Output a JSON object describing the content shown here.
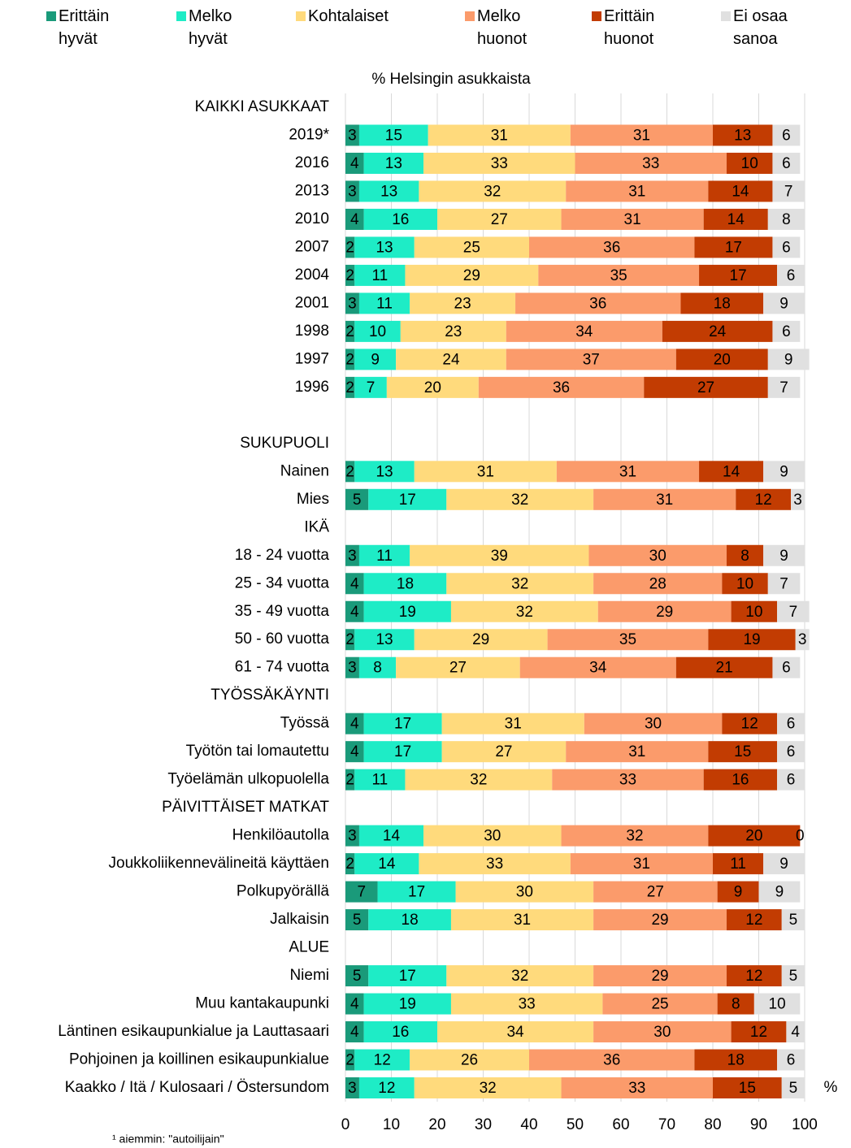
{
  "chart_data": {
    "type": "stacked_barh",
    "subtitle": "% Helsingin asukkaista",
    "x_label": "%",
    "footnote": "¹ aiemmin: \"autoilijain\"",
    "categories": [
      "KAIKKI ASUKKAAT",
      "2019*",
      "2016",
      "2013",
      "2010",
      "2007",
      "2004",
      "2001",
      "1998",
      "1997",
      "1996",
      null,
      "SUKUPUOLI",
      "Nainen",
      "Mies",
      "IKÄ",
      "18 - 24 vuotta",
      "25 - 34 vuotta",
      "35 - 49 vuotta",
      "50 - 60 vuotta",
      "61 - 74 vuotta",
      "TYÖSSÄKÄYNTI",
      "Työssä",
      "Työtön tai lomautettu",
      "Työelämän ulkopuolella",
      "PÄIVITTÄISET MATKAT",
      "Henkilöautolla",
      "Joukkoliikennevälineitä käyttäen",
      "Polkupyörällä",
      "Jalkaisin",
      "ALUE",
      "Niemi",
      "Muu kantakaupunki",
      "Läntinen esikaupunkialue ja Lauttasaari",
      "Pohjoinen ja koillinen esikaupunkialue",
      "Kaakko / Itä / Kulosaari / Östersundom"
    ],
    "series": [
      {
        "name": "Erittäin hyvät",
        "color": "#1a9a7a",
        "values": [
          null,
          3,
          4,
          3,
          4,
          2,
          2,
          3,
          2,
          2,
          2,
          null,
          null,
          2,
          5,
          null,
          3,
          4,
          4,
          2,
          3,
          null,
          4,
          4,
          2,
          null,
          3,
          2,
          7,
          5,
          null,
          5,
          4,
          4,
          2,
          3
        ]
      },
      {
        "name": "Melko hyvät",
        "color": "#1eecc6",
        "values": [
          null,
          15,
          13,
          13,
          16,
          13,
          11,
          11,
          10,
          9,
          7,
          null,
          null,
          13,
          17,
          null,
          11,
          18,
          19,
          13,
          8,
          null,
          17,
          17,
          11,
          null,
          14,
          14,
          17,
          18,
          null,
          17,
          19,
          16,
          12,
          12
        ]
      },
      {
        "name": "Kohtalaiset",
        "color": "#ffda7c",
        "values": [
          null,
          31,
          33,
          32,
          27,
          25,
          29,
          23,
          23,
          24,
          20,
          null,
          null,
          31,
          32,
          null,
          39,
          32,
          32,
          29,
          27,
          null,
          31,
          27,
          32,
          null,
          30,
          33,
          30,
          31,
          null,
          32,
          33,
          34,
          26,
          32
        ]
      },
      {
        "name": "Melko huonot",
        "color": "#fb9b6b",
        "values": [
          null,
          31,
          33,
          31,
          31,
          36,
          35,
          36,
          34,
          37,
          36,
          null,
          null,
          31,
          31,
          null,
          30,
          28,
          29,
          35,
          34,
          null,
          30,
          31,
          33,
          null,
          32,
          31,
          27,
          29,
          null,
          29,
          25,
          30,
          36,
          33
        ]
      },
      {
        "name": "Erittäin huonot",
        "color": "#c23c02",
        "values": [
          null,
          13,
          10,
          14,
          14,
          17,
          17,
          18,
          24,
          20,
          27,
          null,
          null,
          14,
          12,
          null,
          8,
          10,
          10,
          19,
          21,
          null,
          12,
          15,
          16,
          null,
          20,
          11,
          9,
          12,
          null,
          12,
          8,
          12,
          18,
          15
        ]
      },
      {
        "name": "Ei osaa sanoa",
        "color": "#e0e0e0",
        "values": [
          null,
          6,
          6,
          7,
          8,
          6,
          6,
          9,
          6,
          9,
          7,
          null,
          null,
          9,
          3,
          null,
          9,
          7,
          7,
          3,
          6,
          null,
          6,
          6,
          6,
          null,
          0,
          9,
          9,
          5,
          null,
          5,
          10,
          4,
          6,
          5
        ]
      }
    ],
    "xlim": [
      0,
      100
    ],
    "xticks": [
      0,
      10,
      20,
      30,
      40,
      50,
      60,
      70,
      80,
      90,
      100
    ],
    "grid": true,
    "legend": "top"
  }
}
